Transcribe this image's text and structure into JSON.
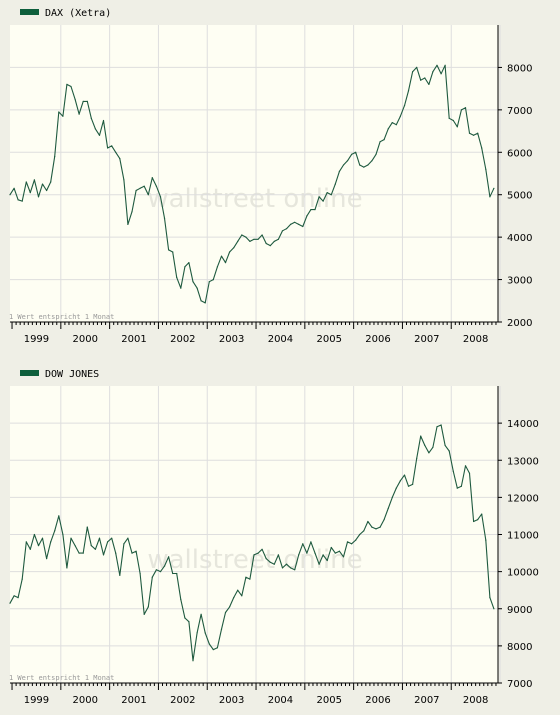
{
  "watermark": "wallstreet online",
  "note": "1 Wert entspricht 1 Monat",
  "colors": {
    "line": "#1f5a3f",
    "plot_background": "#fefef3",
    "page_background": "#efefe6",
    "axis": "#000000",
    "grid": "#dedede",
    "legend_swatch": "#0d5e3b"
  },
  "chart_data": [
    {
      "type": "line",
      "series": [
        {
          "name": "DAX (Xetra)",
          "x": [
            "1998-12",
            "1999-01",
            "1999-02",
            "1999-03",
            "1999-04",
            "1999-05",
            "1999-06",
            "1999-07",
            "1999-08",
            "1999-09",
            "1999-10",
            "1999-11",
            "1999-12",
            "2000-01",
            "2000-02",
            "2000-03",
            "2000-04",
            "2000-05",
            "2000-06",
            "2000-07",
            "2000-08",
            "2000-09",
            "2000-10",
            "2000-11",
            "2000-12",
            "2001-01",
            "2001-02",
            "2001-03",
            "2001-04",
            "2001-05",
            "2001-06",
            "2001-07",
            "2001-08",
            "2001-09",
            "2001-10",
            "2001-11",
            "2001-12",
            "2002-01",
            "2002-02",
            "2002-03",
            "2002-04",
            "2002-05",
            "2002-06",
            "2002-07",
            "2002-08",
            "2002-09",
            "2002-10",
            "2002-11",
            "2002-12",
            "2003-01",
            "2003-02",
            "2003-03",
            "2003-04",
            "2003-05",
            "2003-06",
            "2003-07",
            "2003-08",
            "2003-09",
            "2003-10",
            "2003-11",
            "2003-12",
            "2004-01",
            "2004-02",
            "2004-03",
            "2004-04",
            "2004-05",
            "2004-06",
            "2004-07",
            "2004-08",
            "2004-09",
            "2004-10",
            "2004-11",
            "2004-12",
            "2005-01",
            "2005-02",
            "2005-03",
            "2005-04",
            "2005-05",
            "2005-06",
            "2005-07",
            "2005-08",
            "2005-09",
            "2005-10",
            "2005-11",
            "2005-12",
            "2006-01",
            "2006-02",
            "2006-03",
            "2006-04",
            "2006-05",
            "2006-06",
            "2006-07",
            "2006-08",
            "2006-09",
            "2006-10",
            "2006-11",
            "2006-12",
            "2007-01",
            "2007-02",
            "2007-03",
            "2007-04",
            "2007-05",
            "2007-06",
            "2007-07",
            "2007-08",
            "2007-09",
            "2007-10",
            "2007-11",
            "2007-12",
            "2008-01",
            "2008-02",
            "2008-03",
            "2008-04",
            "2008-05",
            "2008-06",
            "2008-07",
            "2008-08",
            "2008-09",
            "2008-10",
            "2008-11"
          ],
          "values": [
            5000,
            5150,
            4880,
            4850,
            5300,
            5050,
            5350,
            4950,
            5250,
            5100,
            5300,
            5900,
            6950,
            6850,
            7600,
            7550,
            7250,
            6900,
            7200,
            7200,
            6800,
            6550,
            6400,
            6750,
            6100,
            6150,
            6000,
            5850,
            5350,
            4300,
            4600,
            5100,
            5150,
            5200,
            5000,
            5400,
            5200,
            4950,
            4450,
            3700,
            3650,
            3050,
            2800,
            3300,
            3400,
            2950,
            2800,
            2500,
            2450,
            2950,
            3000,
            3300,
            3550,
            3400,
            3650,
            3750,
            3900,
            4050,
            4000,
            3900,
            3950,
            3950,
            4050,
            3850,
            3800,
            3900,
            3950,
            4150,
            4200,
            4300,
            4350,
            4300,
            4250,
            4500,
            4650,
            4650,
            4950,
            4850,
            5050,
            5000,
            5250,
            5550,
            5700,
            5800,
            5950,
            6000,
            5700,
            5650,
            5700,
            5800,
            5950,
            6250,
            6300,
            6550,
            6700,
            6650,
            6850,
            7100,
            7450,
            7900,
            8000,
            7700,
            7750,
            7600,
            7900,
            8050,
            7850,
            8050,
            6800,
            6750,
            6600,
            7000,
            7050,
            6450,
            6400,
            6450,
            6100,
            5600,
            4950,
            5150
          ]
        }
      ],
      "x_tick_labels": [
        "1999",
        "2000",
        "2001",
        "2002",
        "2003",
        "2004",
        "2005",
        "2006",
        "2007",
        "2008"
      ],
      "y_ticks": [
        2000,
        3000,
        4000,
        5000,
        6000,
        7000,
        8000
      ],
      "ylim": [
        2000,
        9000
      ],
      "grid": true,
      "legend": "top-left"
    },
    {
      "type": "line",
      "series": [
        {
          "name": "DOW JONES",
          "x": [
            "1998-12",
            "1999-01",
            "1999-02",
            "1999-03",
            "1999-04",
            "1999-05",
            "1999-06",
            "1999-07",
            "1999-08",
            "1999-09",
            "1999-10",
            "1999-11",
            "1999-12",
            "2000-01",
            "2000-02",
            "2000-03",
            "2000-04",
            "2000-05",
            "2000-06",
            "2000-07",
            "2000-08",
            "2000-09",
            "2000-10",
            "2000-11",
            "2000-12",
            "2001-01",
            "2001-02",
            "2001-03",
            "2001-04",
            "2001-05",
            "2001-06",
            "2001-07",
            "2001-08",
            "2001-09",
            "2001-10",
            "2001-11",
            "2001-12",
            "2002-01",
            "2002-02",
            "2002-03",
            "2002-04",
            "2002-05",
            "2002-06",
            "2002-07",
            "2002-08",
            "2002-09",
            "2002-10",
            "2002-11",
            "2002-12",
            "2003-01",
            "2003-02",
            "2003-03",
            "2003-04",
            "2003-05",
            "2003-06",
            "2003-07",
            "2003-08",
            "2003-09",
            "2003-10",
            "2003-11",
            "2003-12",
            "2004-01",
            "2004-02",
            "2004-03",
            "2004-04",
            "2004-05",
            "2004-06",
            "2004-07",
            "2004-08",
            "2004-09",
            "2004-10",
            "2004-11",
            "2004-12",
            "2005-01",
            "2005-02",
            "2005-03",
            "2005-04",
            "2005-05",
            "2005-06",
            "2005-07",
            "2005-08",
            "2005-09",
            "2005-10",
            "2005-11",
            "2005-12",
            "2006-01",
            "2006-02",
            "2006-03",
            "2006-04",
            "2006-05",
            "2006-06",
            "2006-07",
            "2006-08",
            "2006-09",
            "2006-10",
            "2006-11",
            "2006-12",
            "2007-01",
            "2007-02",
            "2007-03",
            "2007-04",
            "2007-05",
            "2007-06",
            "2007-07",
            "2007-08",
            "2007-09",
            "2007-10",
            "2007-11",
            "2007-12",
            "2008-01",
            "2008-02",
            "2008-03",
            "2008-04",
            "2008-05",
            "2008-06",
            "2008-07",
            "2008-08",
            "2008-09",
            "2008-10",
            "2008-11"
          ],
          "values": [
            9150,
            9350,
            9300,
            9800,
            10800,
            10600,
            11000,
            10700,
            10900,
            10350,
            10800,
            11100,
            11500,
            11000,
            10100,
            10900,
            10700,
            10500,
            10500,
            11200,
            10700,
            10600,
            10900,
            10450,
            10800,
            10900,
            10500,
            9900,
            10750,
            10900,
            10500,
            10550,
            9950,
            8850,
            9050,
            9850,
            10050,
            10000,
            10150,
            10400,
            9950,
            9950,
            9250,
            8750,
            8650,
            7600,
            8350,
            8850,
            8350,
            8050,
            7900,
            7950,
            8450,
            8900,
            9050,
            9300,
            9500,
            9350,
            9850,
            9800,
            10450,
            10500,
            10600,
            10350,
            10250,
            10200,
            10450,
            10100,
            10200,
            10100,
            10050,
            10450,
            10750,
            10500,
            10800,
            10500,
            10200,
            10450,
            10300,
            10650,
            10500,
            10550,
            10400,
            10800,
            10750,
            10850,
            11000,
            11100,
            11350,
            11200,
            11150,
            11200,
            11400,
            11700,
            12000,
            12250,
            12450,
            12600,
            12300,
            12350,
            13050,
            13650,
            13400,
            13200,
            13350,
            13900,
            13950,
            13400,
            13250,
            12700,
            12250,
            12300,
            12850,
            12650,
            11350,
            11400,
            11550,
            10850,
            9300,
            9000
          ]
        }
      ],
      "x_tick_labels": [
        "1999",
        "2000",
        "2001",
        "2002",
        "2003",
        "2004",
        "2005",
        "2006",
        "2007",
        "2008"
      ],
      "y_ticks": [
        7000,
        8000,
        9000,
        10000,
        11000,
        12000,
        13000,
        14000
      ],
      "ylim": [
        7000,
        15000
      ],
      "grid": true,
      "legend": "top-left"
    }
  ]
}
